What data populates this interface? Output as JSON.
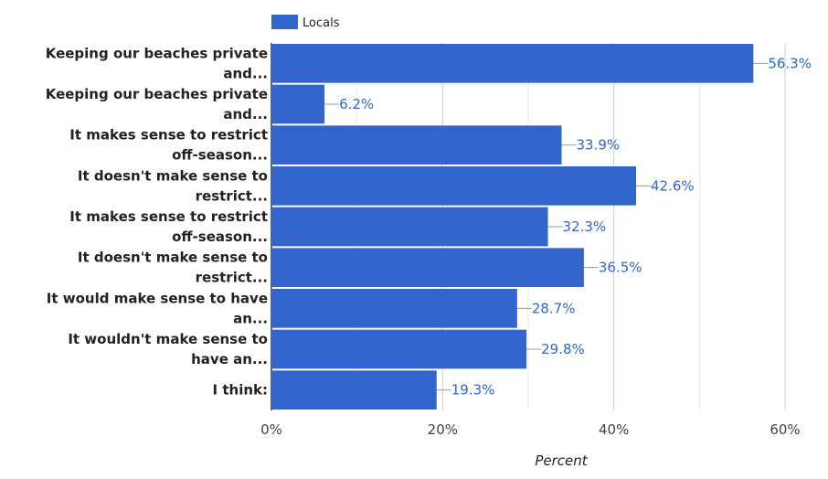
{
  "chart_data": {
    "type": "bar",
    "orientation": "horizontal",
    "categories": [
      [
        "Keeping our beaches private",
        "and..."
      ],
      [
        "Keeping our beaches private",
        "and..."
      ],
      [
        "It makes sense to restrict",
        "off-season..."
      ],
      [
        "It doesn't make sense to",
        "restrict..."
      ],
      [
        "It makes sense to restrict",
        "off-season..."
      ],
      [
        "It doesn't make sense to",
        "restrict..."
      ],
      [
        "It would make sense to have",
        "an..."
      ],
      [
        "It wouldn't make sense to",
        "have an..."
      ],
      [
        "I think:"
      ]
    ],
    "series": [
      {
        "name": "Locals",
        "color": "#3366cc",
        "values": [
          56.3,
          6.2,
          33.9,
          42.6,
          32.3,
          36.5,
          28.7,
          29.8,
          19.3
        ],
        "data_labels": [
          "56.3%",
          "6.2%",
          "33.9%",
          "42.6%",
          "32.3%",
          "36.5%",
          "28.7%",
          "29.8%",
          "19.3%"
        ]
      }
    ],
    "xlabel": "Percent",
    "ylabel": "",
    "xlim": [
      0,
      60
    ],
    "ticks": [
      0,
      20,
      40,
      60
    ],
    "tick_labels": [
      "0%",
      "20%",
      "40%",
      "60%"
    ],
    "minor_ticks": [
      10,
      30,
      50
    ],
    "grid": true,
    "legend_position": "top",
    "label_color": "#3366cc",
    "major_grid_color": "#cccccc",
    "minor_grid_color": "#ebebeb"
  }
}
